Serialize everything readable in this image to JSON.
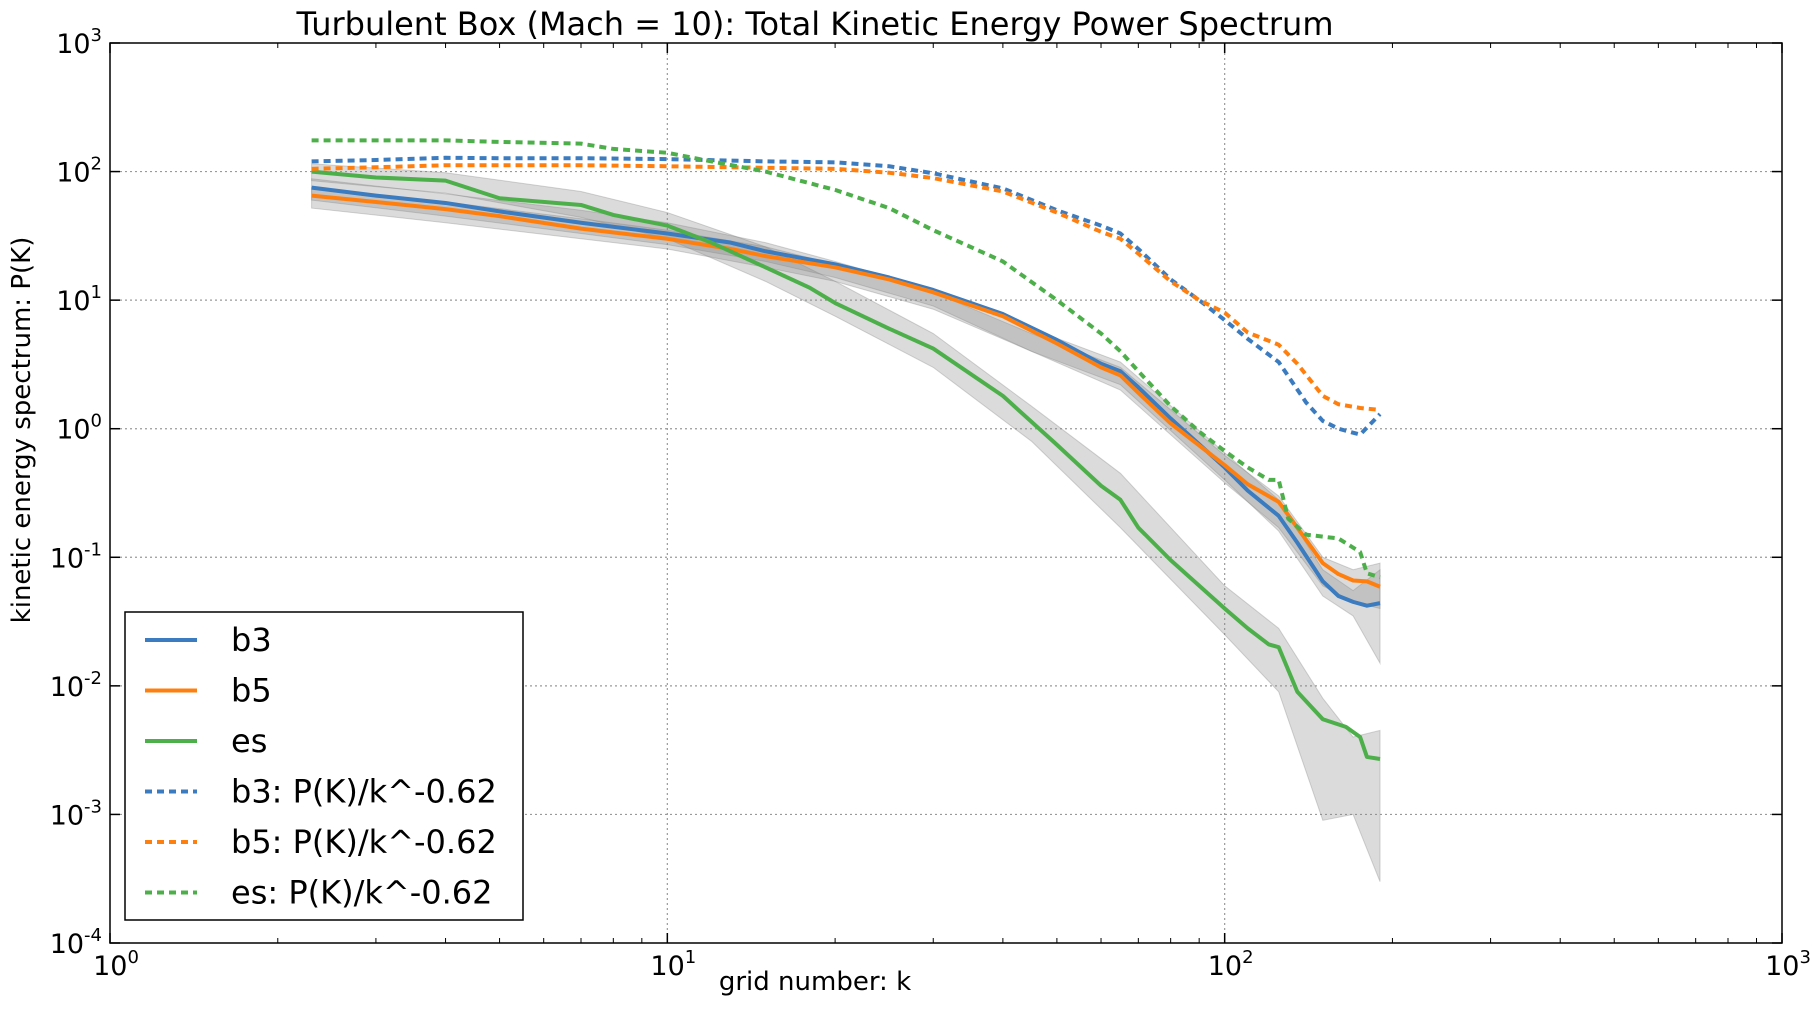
{
  "chart_data": {
    "type": "line",
    "title": "Turbulent Box (Mach = 10): Total Kinetic Energy Power Spectrum",
    "xlabel": "grid number: k",
    "ylabel": "kinetic energy spectrum: P(K)",
    "xscale": "log",
    "yscale": "log",
    "xlim": [
      1,
      1000
    ],
    "ylim": [
      0.0001,
      1000
    ],
    "grid": true,
    "legend_position": "lower-left",
    "x_ticks": [
      {
        "value": 1,
        "base": "10",
        "exp": "0"
      },
      {
        "value": 10,
        "base": "10",
        "exp": "1"
      },
      {
        "value": 100,
        "base": "10",
        "exp": "2"
      },
      {
        "value": 1000,
        "base": "10",
        "exp": "3"
      }
    ],
    "y_ticks": [
      {
        "value": 0.0001,
        "base": "10",
        "exp": "-4"
      },
      {
        "value": 0.001,
        "base": "10",
        "exp": "-3"
      },
      {
        "value": 0.01,
        "base": "10",
        "exp": "-2"
      },
      {
        "value": 0.1,
        "base": "10",
        "exp": "-1"
      },
      {
        "value": 1,
        "base": "10",
        "exp": "0"
      },
      {
        "value": 10,
        "base": "10",
        "exp": "1"
      },
      {
        "value": 100,
        "base": "10",
        "exp": "2"
      },
      {
        "value": 1000,
        "base": "10",
        "exp": "3"
      }
    ],
    "bands": [
      {
        "series": "b3",
        "color": "#888888",
        "x": [
          2.3,
          4,
          7,
          10,
          15,
          20,
          30,
          45,
          65,
          100,
          125,
          150,
          170,
          190
        ],
        "lower": [
          60,
          45,
          33,
          27,
          20,
          15,
          9,
          4,
          2.2,
          0.4,
          0.16,
          0.05,
          0.035,
          0.015
        ],
        "upper": [
          88,
          67,
          50,
          40,
          28,
          20,
          12,
          6,
          3.3,
          0.65,
          0.28,
          0.08,
          0.055,
          0.08
        ]
      },
      {
        "series": "b5",
        "color": "#888888",
        "x": [
          2.3,
          4,
          7,
          10,
          15,
          20,
          30,
          45,
          65,
          100,
          125,
          150,
          170,
          190
        ],
        "lower": [
          52,
          40,
          30,
          25,
          18,
          14,
          8.5,
          4,
          2,
          0.38,
          0.17,
          0.06,
          0.045,
          0.04
        ],
        "upper": [
          75,
          58,
          43,
          35,
          26,
          19,
          11.5,
          5.5,
          3,
          0.62,
          0.3,
          0.1,
          0.08,
          0.09
        ]
      },
      {
        "series": "es",
        "color": "#888888",
        "x": [
          2.3,
          4,
          7,
          10,
          15,
          20,
          30,
          45,
          65,
          100,
          125,
          150,
          170,
          190
        ],
        "lower": [
          85,
          68,
          44,
          30,
          14,
          7.5,
          3,
          0.8,
          0.17,
          0.025,
          0.009,
          0.0009,
          0.001,
          0.0003
        ],
        "upper": [
          115,
          98,
          70,
          48,
          26,
          14,
          5.5,
          1.5,
          0.45,
          0.06,
          0.028,
          0.008,
          0.004,
          0.0045
        ]
      }
    ],
    "series": [
      {
        "name": "b3",
        "color": "#3b7bbf",
        "style": "solid",
        "x": [
          2.3,
          3,
          4,
          5,
          7,
          10,
          13,
          15,
          20,
          25,
          30,
          40,
          50,
          60,
          65,
          70,
          80,
          100,
          110,
          125,
          135,
          150,
          160,
          170,
          180,
          190
        ],
        "y": [
          75,
          65,
          57,
          49,
          40,
          33,
          28,
          24,
          19,
          15,
          12,
          7.8,
          4.9,
          3.2,
          2.8,
          2.1,
          1.2,
          0.5,
          0.33,
          0.21,
          0.13,
          0.065,
          0.05,
          0.045,
          0.042,
          0.044
        ]
      },
      {
        "name": "b5",
        "color": "#ff7f0e",
        "style": "solid",
        "x": [
          2.3,
          3,
          4,
          5,
          7,
          10,
          13,
          15,
          20,
          25,
          30,
          40,
          50,
          60,
          65,
          70,
          80,
          100,
          110,
          125,
          135,
          150,
          160,
          170,
          180,
          190
        ],
        "y": [
          65,
          58,
          51,
          45,
          36,
          30,
          25,
          22,
          18,
          14.5,
          11.5,
          7.5,
          4.6,
          3,
          2.6,
          1.9,
          1.1,
          0.52,
          0.37,
          0.27,
          0.17,
          0.09,
          0.074,
          0.066,
          0.065,
          0.059
        ]
      },
      {
        "name": "es",
        "color": "#4daf4a",
        "style": "solid",
        "x": [
          2.3,
          3,
          4,
          5,
          7,
          8,
          10,
          12,
          15,
          18,
          20,
          25,
          30,
          40,
          50,
          60,
          65,
          70,
          80,
          100,
          110,
          120,
          125,
          135,
          150,
          165,
          175,
          180,
          190
        ],
        "y": [
          100,
          90,
          85,
          62,
          55,
          46,
          38,
          28,
          18,
          12.5,
          9.5,
          6,
          4.2,
          1.8,
          0.75,
          0.36,
          0.28,
          0.17,
          0.095,
          0.04,
          0.028,
          0.021,
          0.02,
          0.009,
          0.0055,
          0.0048,
          0.004,
          0.0028,
          0.0027
        ]
      },
      {
        "name": "b3: P(K)/k^-0.62",
        "color": "#3b7bbf",
        "style": "dashed",
        "x": [
          2.3,
          3,
          4,
          5,
          7,
          10,
          15,
          20,
          25,
          30,
          40,
          50,
          60,
          65,
          70,
          80,
          90,
          100,
          110,
          125,
          140,
          150,
          160,
          175,
          190
        ],
        "y": [
          120,
          123,
          128,
          127,
          127,
          125,
          120,
          118,
          110,
          97,
          74,
          50,
          38,
          33,
          25,
          14.5,
          10,
          7,
          5,
          3.3,
          1.6,
          1.15,
          1,
          0.9,
          1.3
        ]
      },
      {
        "name": "b5: P(K)/k^-0.62",
        "color": "#ff7f0e",
        "style": "dashed",
        "x": [
          2.3,
          3,
          4,
          5,
          7,
          10,
          15,
          20,
          25,
          30,
          40,
          50,
          60,
          65,
          70,
          80,
          90,
          100,
          110,
          125,
          135,
          150,
          160,
          175,
          190
        ],
        "y": [
          105,
          108,
          112,
          112,
          112,
          110,
          107,
          105,
          98,
          89,
          70,
          48,
          34,
          30,
          23,
          14,
          10,
          8,
          5.6,
          4.5,
          3.2,
          1.8,
          1.55,
          1.45,
          1.4
        ]
      },
      {
        "name": "es: P(K)/k^-0.62",
        "color": "#4daf4a",
        "style": "dashed",
        "x": [
          2.3,
          3,
          4,
          5,
          7,
          8,
          10,
          12,
          15,
          20,
          25,
          30,
          40,
          50,
          60,
          65,
          70,
          80,
          90,
          100,
          110,
          120,
          125,
          130,
          140,
          160,
          175,
          180,
          190
        ],
        "y": [
          175,
          175,
          175,
          170,
          165,
          150,
          140,
          120,
          100,
          72,
          52,
          35,
          20,
          10,
          5.5,
          4,
          2.8,
          1.5,
          0.95,
          0.67,
          0.5,
          0.4,
          0.4,
          0.2,
          0.15,
          0.14,
          0.11,
          0.075,
          0.07
        ]
      }
    ]
  }
}
